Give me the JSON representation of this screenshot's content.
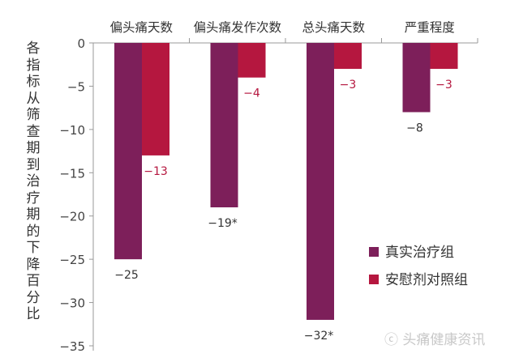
{
  "chart_data": {
    "type": "bar",
    "title": "",
    "xlabel": "",
    "ylabel": "各指标从筛查期到治疗期的下降百分比",
    "ylim": [
      -35,
      0
    ],
    "yticks": [
      0,
      -5,
      -10,
      -15,
      -20,
      -25,
      -30,
      -35
    ],
    "ytick_labels": [
      "0",
      "−5",
      "−10",
      "−15",
      "−20",
      "−25",
      "−30",
      "−35"
    ],
    "categories": [
      "偏头痛天数",
      "偏头痛发作次数",
      "总头痛天数",
      "严重程度"
    ],
    "category_position": "top",
    "grid": false,
    "legend_position": "bottom-right",
    "series": [
      {
        "name": "真实治疗组",
        "color": "#7d1f5a",
        "values": [
          -25,
          -19,
          -32,
          -8
        ],
        "labels": [
          "−25",
          "−19*",
          "−32*",
          "−8"
        ]
      },
      {
        "name": "安慰剂对照组",
        "color": "#b5173f",
        "values": [
          -13,
          -4,
          -3,
          -3
        ],
        "labels": [
          "−13",
          "−4",
          "−3",
          "−3"
        ]
      }
    ]
  },
  "watermark": "头痛健康资讯"
}
